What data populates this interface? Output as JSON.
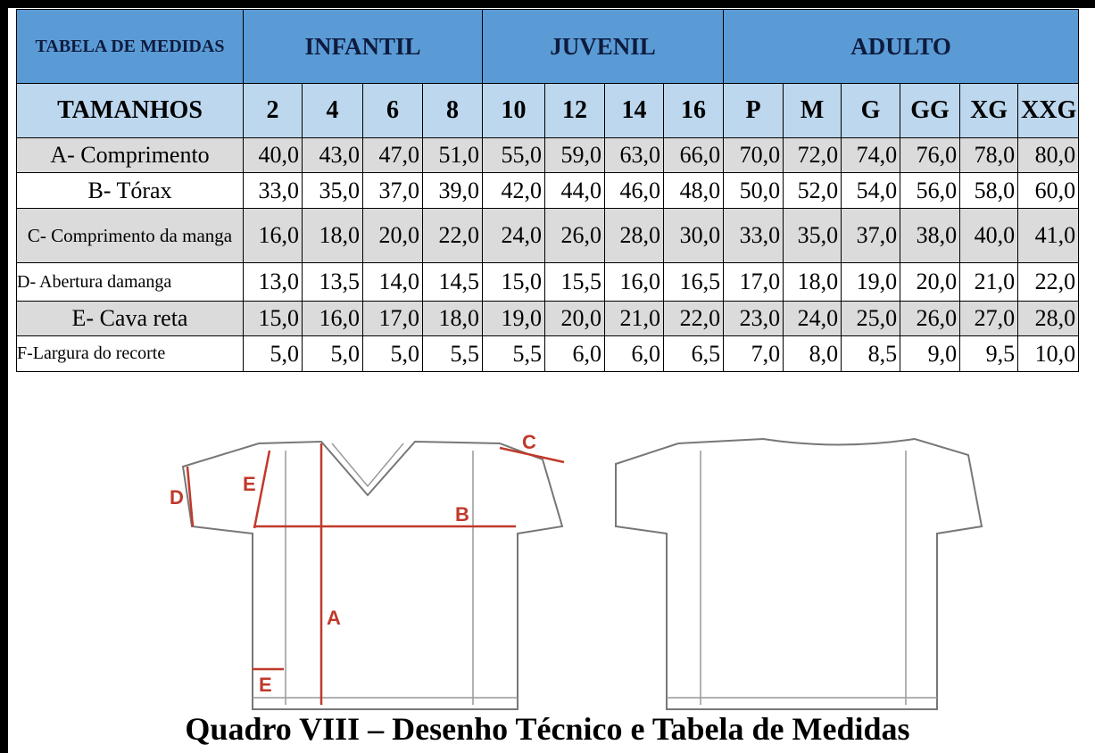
{
  "table": {
    "title": "TABELA DE MEDIDAS",
    "groups": [
      "INFANTIL",
      "JUVENIL",
      "ADULTO"
    ],
    "size_header": "TAMANHOS",
    "sizes": [
      "2",
      "4",
      "6",
      "8",
      "10",
      "12",
      "14",
      "16",
      "P",
      "M",
      "G",
      "GG",
      "XG",
      "XXG"
    ],
    "rows": [
      [
        "A- Comprimento",
        "40,0",
        "43,0",
        "47,0",
        "51,0",
        "55,0",
        "59,0",
        "63,0",
        "66,0",
        "70,0",
        "72,0",
        "74,0",
        "76,0",
        "78,0",
        "80,0"
      ],
      [
        "B- Tórax",
        "33,0",
        "35,0",
        "37,0",
        "39,0",
        "42,0",
        "44,0",
        "46,0",
        "48,0",
        "50,0",
        "52,0",
        "54,0",
        "56,0",
        "58,0",
        "60,0"
      ],
      [
        "C- Comprimento da manga",
        "16,0",
        "18,0",
        "20,0",
        "22,0",
        "24,0",
        "26,0",
        "28,0",
        "30,0",
        "33,0",
        "35,0",
        "37,0",
        "38,0",
        "40,0",
        "41,0"
      ],
      [
        "D- Abertura damanga",
        "13,0",
        "13,5",
        "14,0",
        "14,5",
        "15,0",
        "15,5",
        "16,0",
        "16,5",
        "17,0",
        "18,0",
        "19,0",
        "20,0",
        "21,0",
        "22,0"
      ],
      [
        "E- Cava reta",
        "15,0",
        "16,0",
        "17,0",
        "18,0",
        "19,0",
        "20,0",
        "21,0",
        "22,0",
        "23,0",
        "24,0",
        "25,0",
        "26,0",
        "27,0",
        "28,0"
      ],
      [
        "F-Largura do recorte",
        "5,0",
        "5,0",
        "5,0",
        "5,5",
        "5,5",
        "6,0",
        "6,0",
        "6,5",
        "7,0",
        "8,0",
        "8,5",
        "9,0",
        "9,5",
        "10,0"
      ]
    ]
  },
  "drawing": {
    "labels": [
      "D",
      "E",
      "C",
      "B",
      "A",
      "E"
    ]
  },
  "caption": "Quadro VIII – Desenho Técnico e Tabela de Medidas"
}
